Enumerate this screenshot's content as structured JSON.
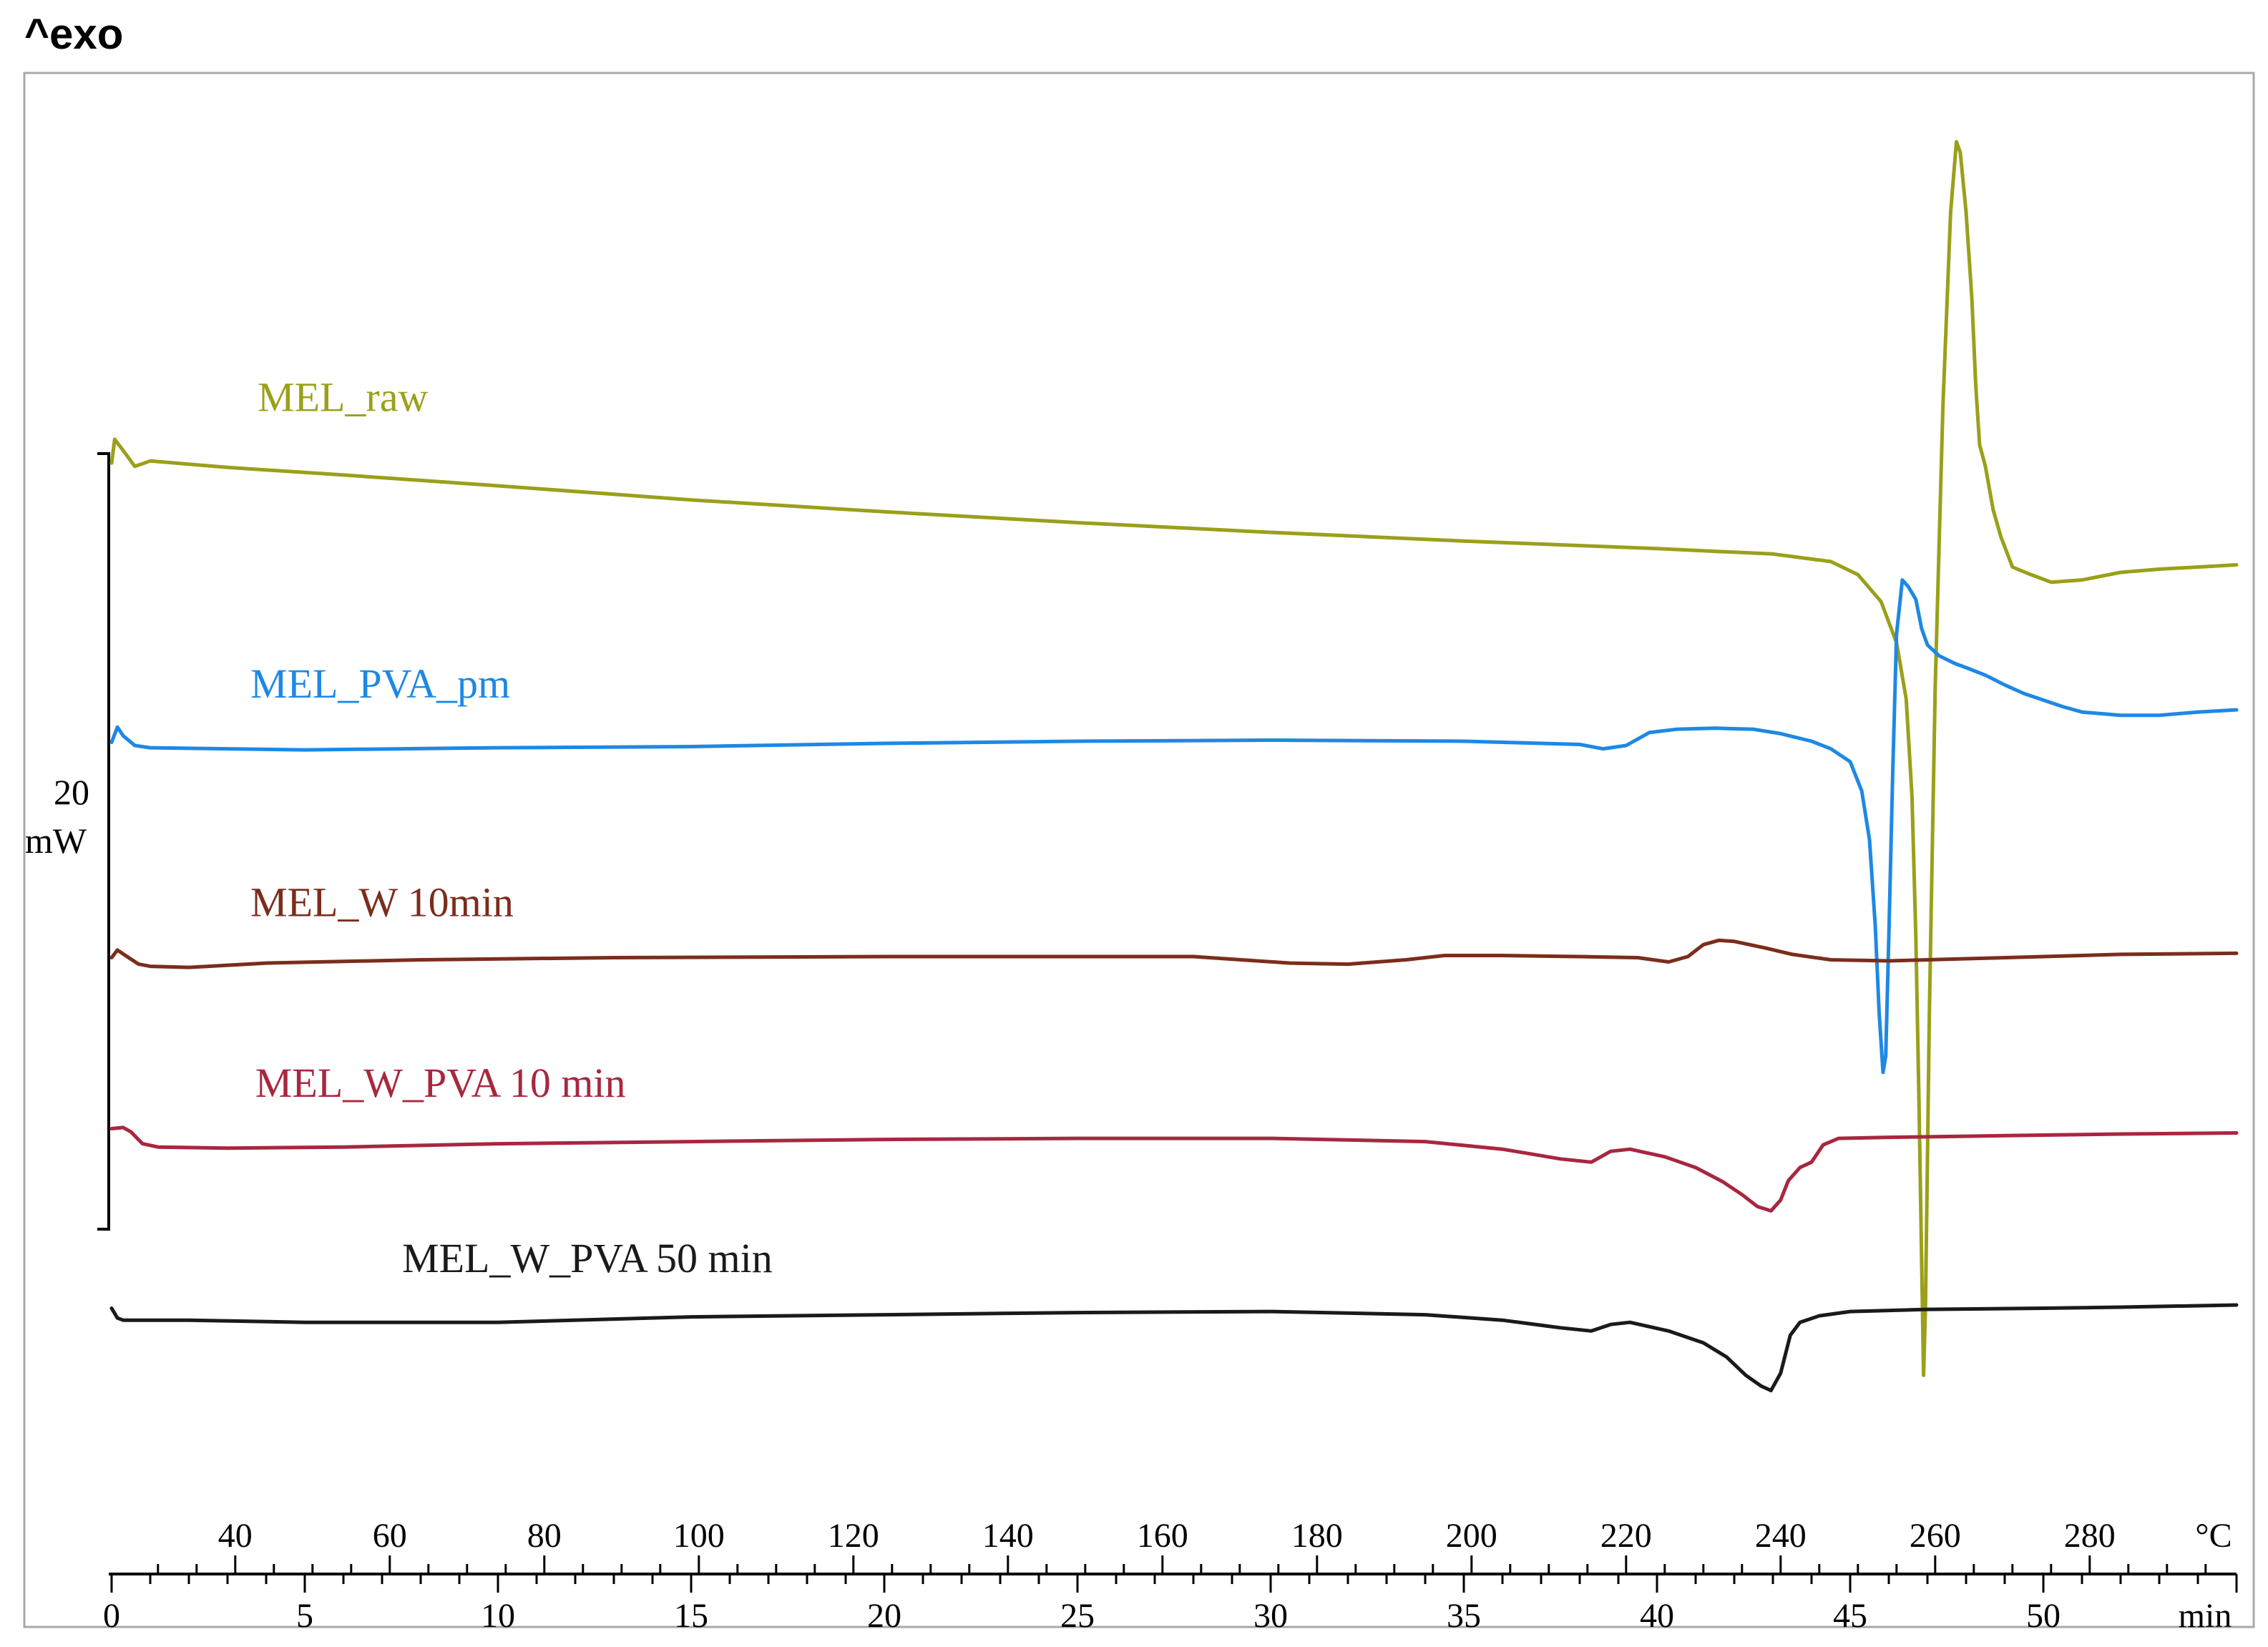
{
  "chart_data": {
    "type": "line",
    "title": "^exo",
    "scale_bar": {
      "value": "20",
      "unit": "mW"
    },
    "x_axis_temperature": {
      "unit": "°C",
      "range": [
        24,
        298
      ],
      "ticks": [
        "40",
        "60",
        "80",
        "100",
        "120",
        "140",
        "160",
        "180",
        "200",
        "220",
        "240",
        "260",
        "280"
      ]
    },
    "x_axis_time": {
      "unit": "min",
      "range": [
        0,
        55
      ],
      "ticks": [
        "0",
        "5",
        "10",
        "15",
        "20",
        "25",
        "30",
        "35",
        "40",
        "45",
        "50"
      ]
    },
    "series": [
      {
        "name": "MEL_raw",
        "color": "#9aa019",
        "points": [
          [
            0,
            -1.2
          ],
          [
            0.08,
            1.0
          ],
          [
            0.25,
            0.2
          ],
          [
            0.6,
            -1.5
          ],
          [
            1.0,
            -1.0
          ],
          [
            3,
            -1.6
          ],
          [
            6,
            -2.3
          ],
          [
            10,
            -3.3
          ],
          [
            15,
            -4.6
          ],
          [
            20,
            -5.7
          ],
          [
            25,
            -6.7
          ],
          [
            30,
            -7.6
          ],
          [
            35,
            -8.4
          ],
          [
            40,
            -9.1
          ],
          [
            43,
            -9.6
          ],
          [
            44.5,
            -10.3
          ],
          [
            45.2,
            -11.5
          ],
          [
            45.8,
            -14.0
          ],
          [
            46.2,
            -17.8
          ],
          [
            46.45,
            -23.0
          ],
          [
            46.6,
            -32.0
          ],
          [
            46.7,
            -45.0
          ],
          [
            46.78,
            -60.0
          ],
          [
            46.85,
            -75.0
          ],
          [
            46.9,
            -85.5
          ],
          [
            46.95,
            -79.0
          ],
          [
            47.05,
            -52.0
          ],
          [
            47.2,
            -22.0
          ],
          [
            47.4,
            4.0
          ],
          [
            47.6,
            22.0
          ],
          [
            47.75,
            28.5
          ],
          [
            47.85,
            27.5
          ],
          [
            48.0,
            22.0
          ],
          [
            48.15,
            14.0
          ],
          [
            48.25,
            6.0
          ],
          [
            48.35,
            0.5
          ],
          [
            48.5,
            -1.5
          ],
          [
            48.7,
            -5.5
          ],
          [
            48.9,
            -8.0
          ],
          [
            49.2,
            -10.8
          ],
          [
            49.6,
            -11.4
          ],
          [
            50.2,
            -12.2
          ],
          [
            51,
            -12.0
          ],
          [
            52,
            -11.3
          ],
          [
            53,
            -11.0
          ],
          [
            55,
            -10.6
          ]
        ]
      },
      {
        "name": "MEL_PVA_pm",
        "color": "#1e88e5",
        "points": [
          [
            0,
            -27.0
          ],
          [
            0.15,
            -25.6
          ],
          [
            0.3,
            -26.4
          ],
          [
            0.6,
            -27.3
          ],
          [
            1.0,
            -27.5
          ],
          [
            5,
            -27.7
          ],
          [
            10,
            -27.5
          ],
          [
            15,
            -27.4
          ],
          [
            20,
            -27.1
          ],
          [
            25,
            -26.9
          ],
          [
            30,
            -26.8
          ],
          [
            35,
            -26.9
          ],
          [
            38,
            -27.2
          ],
          [
            38.6,
            -27.6
          ],
          [
            39.2,
            -27.3
          ],
          [
            39.8,
            -26.1
          ],
          [
            40.5,
            -25.8
          ],
          [
            41.5,
            -25.7
          ],
          [
            42.5,
            -25.8
          ],
          [
            43.2,
            -26.2
          ],
          [
            44.0,
            -26.9
          ],
          [
            44.5,
            -27.6
          ],
          [
            45.0,
            -28.8
          ],
          [
            45.3,
            -31.5
          ],
          [
            45.5,
            -36.0
          ],
          [
            45.65,
            -44.0
          ],
          [
            45.75,
            -52.0
          ],
          [
            45.85,
            -57.5
          ],
          [
            45.92,
            -56.0
          ],
          [
            46.0,
            -45.0
          ],
          [
            46.1,
            -30.0
          ],
          [
            46.2,
            -17.0
          ],
          [
            46.35,
            -12.0
          ],
          [
            46.5,
            -12.6
          ],
          [
            46.7,
            -13.8
          ],
          [
            46.85,
            -16.5
          ],
          [
            47.0,
            -18.0
          ],
          [
            47.3,
            -19.0
          ],
          [
            47.7,
            -19.7
          ],
          [
            48,
            -20.1
          ],
          [
            48.5,
            -20.8
          ],
          [
            49,
            -21.7
          ],
          [
            49.5,
            -22.5
          ],
          [
            50,
            -23.1
          ],
          [
            50.5,
            -23.7
          ],
          [
            51,
            -24.2
          ],
          [
            52,
            -24.5
          ],
          [
            53,
            -24.5
          ],
          [
            54,
            -24.2
          ],
          [
            55,
            -24.0
          ]
        ]
      },
      {
        "name": "MEL_W 10min",
        "color": "#7b2d1c",
        "points": [
          [
            0,
            -46.9
          ],
          [
            0.15,
            -46.2
          ],
          [
            0.4,
            -46.8
          ],
          [
            0.7,
            -47.5
          ],
          [
            1.0,
            -47.7
          ],
          [
            2,
            -47.8
          ],
          [
            4,
            -47.4
          ],
          [
            8,
            -47.1
          ],
          [
            13,
            -46.9
          ],
          [
            20,
            -46.8
          ],
          [
            28,
            -46.8
          ],
          [
            30.5,
            -47.4
          ],
          [
            32,
            -47.5
          ],
          [
            33.5,
            -47.1
          ],
          [
            34.5,
            -46.7
          ],
          [
            36,
            -46.7
          ],
          [
            38,
            -46.8
          ],
          [
            39.5,
            -46.9
          ],
          [
            40.3,
            -47.3
          ],
          [
            40.8,
            -46.8
          ],
          [
            41.2,
            -45.7
          ],
          [
            41.6,
            -45.3
          ],
          [
            42,
            -45.4
          ],
          [
            42.8,
            -46.0
          ],
          [
            43.5,
            -46.6
          ],
          [
            44.5,
            -47.1
          ],
          [
            46,
            -47.2
          ],
          [
            48,
            -47.0
          ],
          [
            50,
            -46.8
          ],
          [
            52,
            -46.6
          ],
          [
            55,
            -46.5
          ]
        ]
      },
      {
        "name": "MEL_W_PVA 10 min",
        "color": "#a8273f",
        "points": [
          [
            0,
            -62.7
          ],
          [
            0.3,
            -62.6
          ],
          [
            0.5,
            -63.0
          ],
          [
            0.8,
            -64.1
          ],
          [
            1.2,
            -64.4
          ],
          [
            3,
            -64.5
          ],
          [
            6,
            -64.4
          ],
          [
            10,
            -64.1
          ],
          [
            15,
            -63.9
          ],
          [
            20,
            -63.7
          ],
          [
            25,
            -63.6
          ],
          [
            30,
            -63.6
          ],
          [
            34,
            -63.9
          ],
          [
            36,
            -64.6
          ],
          [
            37.5,
            -65.5
          ],
          [
            38.3,
            -65.8
          ],
          [
            38.8,
            -64.8
          ],
          [
            39.3,
            -64.6
          ],
          [
            40.2,
            -65.3
          ],
          [
            41.0,
            -66.3
          ],
          [
            41.7,
            -67.6
          ],
          [
            42.2,
            -68.8
          ],
          [
            42.6,
            -69.9
          ],
          [
            42.95,
            -70.3
          ],
          [
            43.2,
            -69.3
          ],
          [
            43.4,
            -67.5
          ],
          [
            43.7,
            -66.3
          ],
          [
            44.0,
            -65.8
          ],
          [
            44.3,
            -64.2
          ],
          [
            44.7,
            -63.6
          ],
          [
            46,
            -63.5
          ],
          [
            48,
            -63.4
          ],
          [
            50,
            -63.3
          ],
          [
            52,
            -63.2
          ],
          [
            55,
            -63.1
          ]
        ]
      },
      {
        "name": "MEL_W_PVA 50 min",
        "color": "#1a1a1a",
        "points": [
          [
            0,
            -79.3
          ],
          [
            0.15,
            -80.2
          ],
          [
            0.3,
            -80.4
          ],
          [
            2,
            -80.4
          ],
          [
            5,
            -80.6
          ],
          [
            10,
            -80.6
          ],
          [
            15,
            -80.1
          ],
          [
            20,
            -79.9
          ],
          [
            25,
            -79.7
          ],
          [
            30,
            -79.6
          ],
          [
            34,
            -79.9
          ],
          [
            36,
            -80.4
          ],
          [
            37.5,
            -81.1
          ],
          [
            38.3,
            -81.4
          ],
          [
            38.8,
            -80.8
          ],
          [
            39.3,
            -80.6
          ],
          [
            40.3,
            -81.4
          ],
          [
            41.2,
            -82.5
          ],
          [
            41.8,
            -83.8
          ],
          [
            42.3,
            -85.5
          ],
          [
            42.7,
            -86.5
          ],
          [
            42.95,
            -86.9
          ],
          [
            43.2,
            -85.3
          ],
          [
            43.45,
            -81.8
          ],
          [
            43.7,
            -80.6
          ],
          [
            44.2,
            -80.0
          ],
          [
            45,
            -79.6
          ],
          [
            47,
            -79.4
          ],
          [
            50,
            -79.3
          ],
          [
            52,
            -79.2
          ],
          [
            55,
            -79.0
          ]
        ]
      }
    ],
    "y_range": [
      -95,
      33
    ]
  }
}
